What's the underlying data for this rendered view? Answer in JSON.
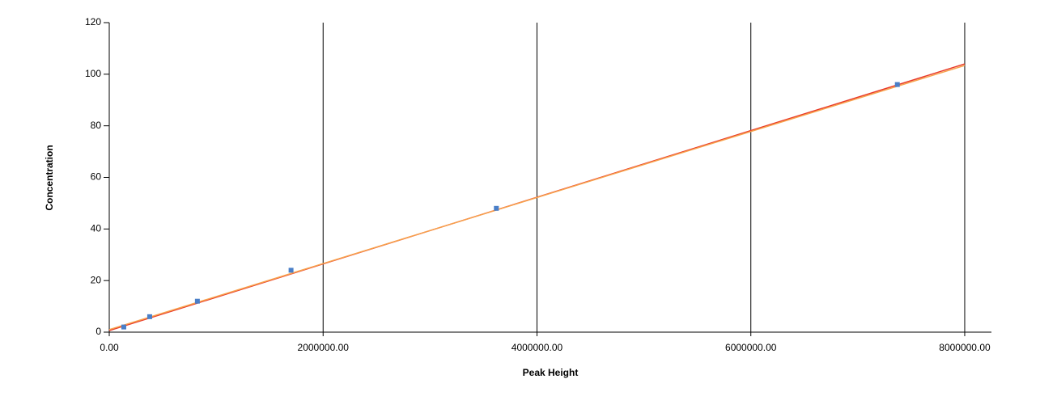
{
  "chart_data": {
    "type": "scatter",
    "x_label": "Peak Height",
    "y_label": "Concentration",
    "xlim": [
      0,
      8250000
    ],
    "ylim": [
      0,
      120
    ],
    "xticks": [
      {
        "value": 0,
        "label": "0.00"
      },
      {
        "value": 2000000,
        "label": "2000000.00"
      },
      {
        "value": 4000000,
        "label": "4000000.00"
      },
      {
        "value": 6000000,
        "label": "6000000.00"
      },
      {
        "value": 8000000,
        "label": "8000000.00"
      }
    ],
    "yticks": [
      0,
      20,
      40,
      60,
      80,
      100,
      120
    ],
    "grid": true,
    "series": [
      {
        "type": "scatter",
        "color": "#4a7fc8",
        "x": [
          136000,
          378000,
          824000,
          1700000,
          3620000,
          7370000
        ],
        "values": [
          2,
          6,
          12,
          24,
          48,
          96
        ]
      },
      {
        "type": "line",
        "color": "#e8392a",
        "x": [
          0,
          8000000
        ],
        "values": [
          0.6,
          104
        ]
      },
      {
        "type": "line",
        "color": "#f7a24c",
        "x": [
          0,
          8000000
        ],
        "values": [
          1.0,
          103.4
        ]
      }
    ]
  }
}
